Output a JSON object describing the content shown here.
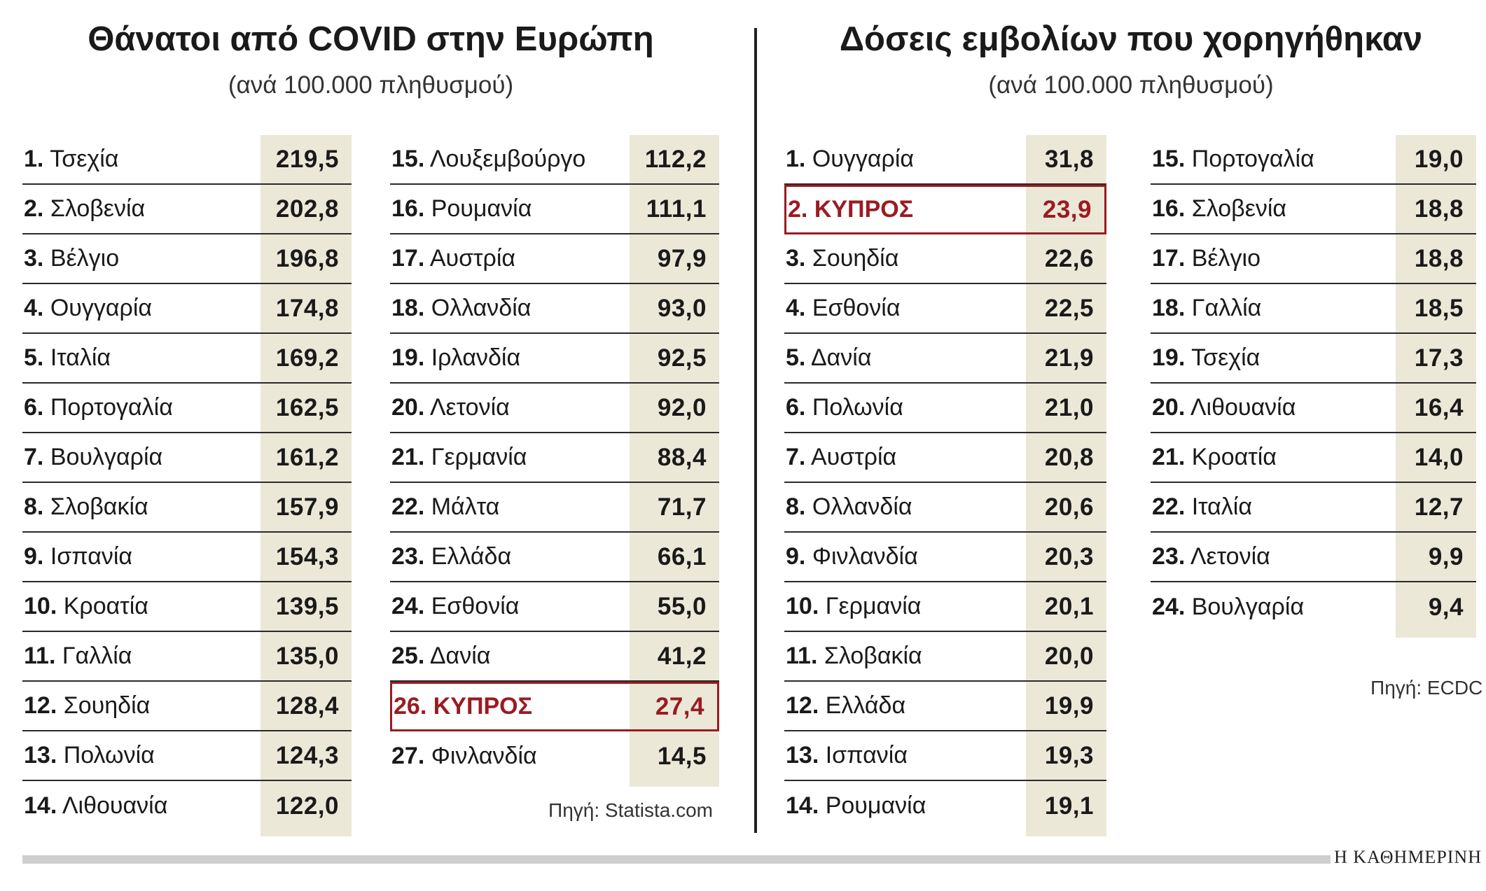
{
  "chart_data": [
    {
      "type": "table",
      "title": "Θάνατοι από COVID στην Ευρώπη",
      "subtitle": "(ανά 100.000 πληθυσμού)",
      "source": "Πηγή: Statista.com",
      "highlight_color": "#9b1b22",
      "rows": [
        {
          "rank": "1.",
          "name": "Τσεχία",
          "value": "219,5"
        },
        {
          "rank": "2.",
          "name": "Σλοβενία",
          "value": "202,8"
        },
        {
          "rank": "3.",
          "name": "Βέλγιο",
          "value": "196,8"
        },
        {
          "rank": "4.",
          "name": "Ουγγαρία",
          "value": "174,8"
        },
        {
          "rank": "5.",
          "name": "Ιταλία",
          "value": "169,2"
        },
        {
          "rank": "6.",
          "name": "Πορτογαλία",
          "value": "162,5"
        },
        {
          "rank": "7.",
          "name": "Βουλγαρία",
          "value": "161,2"
        },
        {
          "rank": "8.",
          "name": "Σλοβακία",
          "value": "157,9"
        },
        {
          "rank": "9.",
          "name": "Ισπανία",
          "value": "154,3"
        },
        {
          "rank": "10.",
          "name": "Κροατία",
          "value": "139,5"
        },
        {
          "rank": "11.",
          "name": "Γαλλία",
          "value": "135,0"
        },
        {
          "rank": "12.",
          "name": "Σουηδία",
          "value": "128,4"
        },
        {
          "rank": "13.",
          "name": "Πολωνία",
          "value": "124,3"
        },
        {
          "rank": "14.",
          "name": "Λιθουανία",
          "value": "122,0"
        },
        {
          "rank": "15.",
          "name": "Λουξεμβούργο",
          "value": "112,2"
        },
        {
          "rank": "16.",
          "name": "Ρουμανία",
          "value": "111,1"
        },
        {
          "rank": "17.",
          "name": "Αυστρία",
          "value": "97,9"
        },
        {
          "rank": "18.",
          "name": "Ολλανδία",
          "value": "93,0"
        },
        {
          "rank": "19.",
          "name": "Ιρλανδία",
          "value": "92,5"
        },
        {
          "rank": "20.",
          "name": "Λετονία",
          "value": "92,0"
        },
        {
          "rank": "21.",
          "name": "Γερμανία",
          "value": "88,4"
        },
        {
          "rank": "22.",
          "name": "Μάλτα",
          "value": "71,7"
        },
        {
          "rank": "23.",
          "name": "Ελλάδα",
          "value": "66,1"
        },
        {
          "rank": "24.",
          "name": "Εσθονία",
          "value": "55,0"
        },
        {
          "rank": "25.",
          "name": "Δανία",
          "value": "41,2"
        },
        {
          "rank": "26.",
          "name": "ΚΥΠΡΟΣ",
          "value": "27,4",
          "highlight": true
        },
        {
          "rank": "27.",
          "name": "Φινλανδία",
          "value": "14,5"
        }
      ]
    },
    {
      "type": "table",
      "title": "Δόσεις εμβολίων που χορηγήθηκαν",
      "subtitle": "(ανά 100.000 πληθυσμού)",
      "source": "Πηγή: ECDC",
      "highlight_color": "#9b1b22",
      "rows": [
        {
          "rank": "1.",
          "name": "Ουγγαρία",
          "value": "31,8"
        },
        {
          "rank": "2.",
          "name": "ΚΥΠΡΟΣ",
          "value": "23,9",
          "highlight": true
        },
        {
          "rank": "3.",
          "name": "Σουηδία",
          "value": "22,6"
        },
        {
          "rank": "4.",
          "name": "Εσθονία",
          "value": "22,5"
        },
        {
          "rank": "5.",
          "name": "Δανία",
          "value": "21,9"
        },
        {
          "rank": "6.",
          "name": "Πολωνία",
          "value": "21,0"
        },
        {
          "rank": "7.",
          "name": "Αυστρία",
          "value": "20,8"
        },
        {
          "rank": "8.",
          "name": "Ολλανδία",
          "value": "20,6"
        },
        {
          "rank": "9.",
          "name": "Φινλανδία",
          "value": "20,3"
        },
        {
          "rank": "10.",
          "name": "Γερμανία",
          "value": "20,1"
        },
        {
          "rank": "11.",
          "name": "Σλοβακία",
          "value": "20,0"
        },
        {
          "rank": "12.",
          "name": "Ελλάδα",
          "value": "19,9"
        },
        {
          "rank": "13.",
          "name": "Ισπανία",
          "value": "19,3"
        },
        {
          "rank": "14.",
          "name": "Ρουμανία",
          "value": "19,1"
        },
        {
          "rank": "15.",
          "name": "Πορτογαλία",
          "value": "19,0"
        },
        {
          "rank": "16.",
          "name": "Σλοβενία",
          "value": "18,8"
        },
        {
          "rank": "17.",
          "name": "Βέλγιο",
          "value": "18,8"
        },
        {
          "rank": "18.",
          "name": "Γαλλία",
          "value": "18,5"
        },
        {
          "rank": "19.",
          "name": "Τσεχία",
          "value": "17,3"
        },
        {
          "rank": "20.",
          "name": "Λιθουανία",
          "value": "16,4"
        },
        {
          "rank": "21.",
          "name": "Κροατία",
          "value": "14,0"
        },
        {
          "rank": "22.",
          "name": "Ιταλία",
          "value": "12,7"
        },
        {
          "rank": "23.",
          "name": "Λετονία",
          "value": "9,9"
        },
        {
          "rank": "24.",
          "name": "Βουλγαρία",
          "value": "9,4"
        }
      ]
    }
  ],
  "footer": {
    "brand": "Η ΚΑΘΗΜΕΡΙΝΗ"
  }
}
